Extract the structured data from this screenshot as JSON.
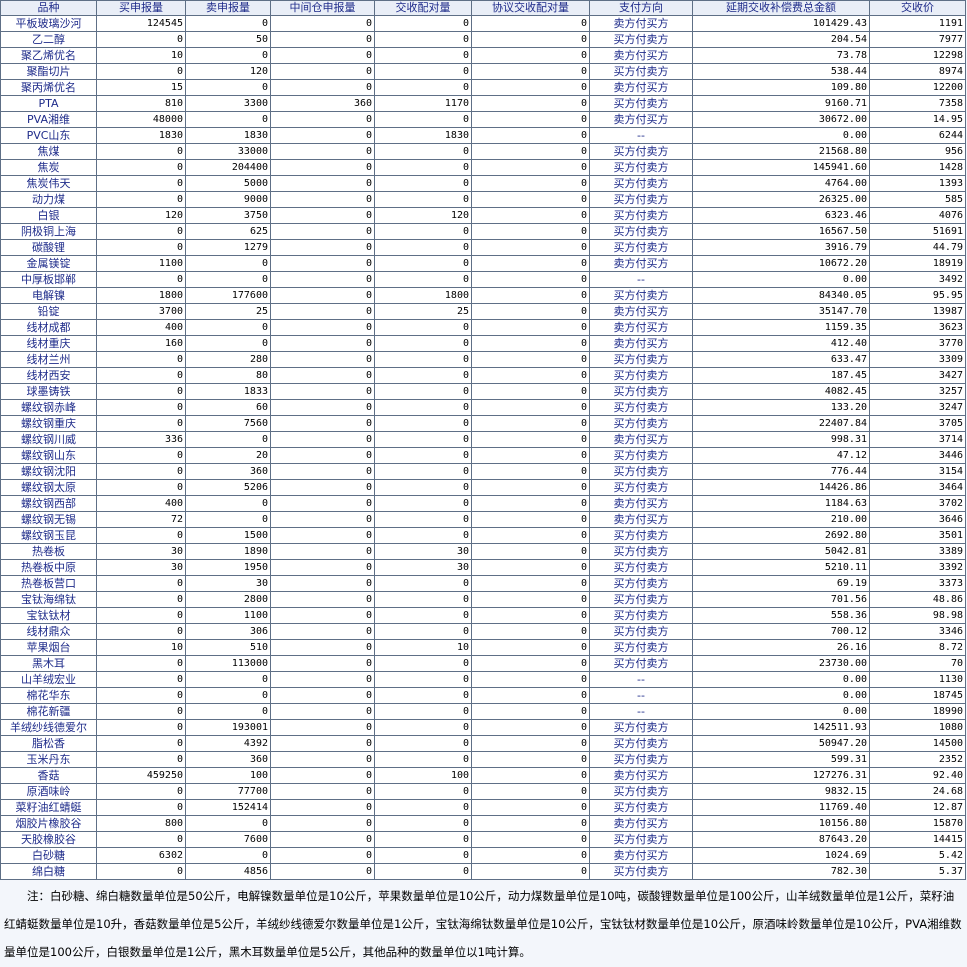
{
  "headers": [
    "品种",
    "买申报量",
    "卖申报量",
    "中间仓申报量",
    "交收配对量",
    "协议交收配对量",
    "支付方向",
    "延期交收补偿费总金额",
    "交收价"
  ],
  "rows": [
    [
      "平板玻璃沙河",
      "124545",
      "0",
      "0",
      "0",
      "0",
      "卖方付买方",
      "101429.43",
      "1191"
    ],
    [
      "乙二醇",
      "0",
      "50",
      "0",
      "0",
      "0",
      "买方付卖方",
      "204.54",
      "7977"
    ],
    [
      "聚乙烯优名",
      "10",
      "0",
      "0",
      "0",
      "0",
      "卖方付买方",
      "73.78",
      "12298"
    ],
    [
      "聚酯切片",
      "0",
      "120",
      "0",
      "0",
      "0",
      "买方付卖方",
      "538.44",
      "8974"
    ],
    [
      "聚丙烯优名",
      "15",
      "0",
      "0",
      "0",
      "0",
      "卖方付买方",
      "109.80",
      "12200"
    ],
    [
      "PTA",
      "810",
      "3300",
      "360",
      "1170",
      "0",
      "买方付卖方",
      "9160.71",
      "7358"
    ],
    [
      "PVA湘维",
      "48000",
      "0",
      "0",
      "0",
      "0",
      "卖方付买方",
      "30672.00",
      "14.95"
    ],
    [
      "PVC山东",
      "1830",
      "1830",
      "0",
      "1830",
      "0",
      "--",
      "0.00",
      "6244"
    ],
    [
      "焦煤",
      "0",
      "33000",
      "0",
      "0",
      "0",
      "买方付卖方",
      "21568.80",
      "956"
    ],
    [
      "焦炭",
      "0",
      "204400",
      "0",
      "0",
      "0",
      "买方付卖方",
      "145941.60",
      "1428"
    ],
    [
      "焦炭伟天",
      "0",
      "5000",
      "0",
      "0",
      "0",
      "买方付卖方",
      "4764.00",
      "1393"
    ],
    [
      "动力煤",
      "0",
      "9000",
      "0",
      "0",
      "0",
      "买方付卖方",
      "26325.00",
      "585"
    ],
    [
      "白银",
      "120",
      "3750",
      "0",
      "120",
      "0",
      "买方付卖方",
      "6323.46",
      "4076"
    ],
    [
      "阴极铜上海",
      "0",
      "625",
      "0",
      "0",
      "0",
      "买方付卖方",
      "16567.50",
      "51691"
    ],
    [
      "碳酸锂",
      "0",
      "1279",
      "0",
      "0",
      "0",
      "买方付卖方",
      "3916.79",
      "44.79"
    ],
    [
      "金属镁锭",
      "1100",
      "0",
      "0",
      "0",
      "0",
      "卖方付买方",
      "10672.20",
      "18919"
    ],
    [
      "中厚板邯郸",
      "0",
      "0",
      "0",
      "0",
      "0",
      "--",
      "0.00",
      "3492"
    ],
    [
      "电解镍",
      "1800",
      "177600",
      "0",
      "1800",
      "0",
      "买方付卖方",
      "84340.05",
      "95.95"
    ],
    [
      "铅锭",
      "3700",
      "25",
      "0",
      "25",
      "0",
      "卖方付买方",
      "35147.70",
      "13987"
    ],
    [
      "线材成都",
      "400",
      "0",
      "0",
      "0",
      "0",
      "卖方付买方",
      "1159.35",
      "3623"
    ],
    [
      "线材重庆",
      "160",
      "0",
      "0",
      "0",
      "0",
      "卖方付买方",
      "412.40",
      "3770"
    ],
    [
      "线材兰州",
      "0",
      "280",
      "0",
      "0",
      "0",
      "买方付卖方",
      "633.47",
      "3309"
    ],
    [
      "线材西安",
      "0",
      "80",
      "0",
      "0",
      "0",
      "买方付卖方",
      "187.45",
      "3427"
    ],
    [
      "球墨铸铁",
      "0",
      "1833",
      "0",
      "0",
      "0",
      "买方付卖方",
      "4082.45",
      "3257"
    ],
    [
      "螺纹钢赤峰",
      "0",
      "60",
      "0",
      "0",
      "0",
      "买方付卖方",
      "133.20",
      "3247"
    ],
    [
      "螺纹钢重庆",
      "0",
      "7560",
      "0",
      "0",
      "0",
      "买方付卖方",
      "22407.84",
      "3705"
    ],
    [
      "螺纹钢川威",
      "336",
      "0",
      "0",
      "0",
      "0",
      "卖方付买方",
      "998.31",
      "3714"
    ],
    [
      "螺纹钢山东",
      "0",
      "20",
      "0",
      "0",
      "0",
      "买方付卖方",
      "47.12",
      "3446"
    ],
    [
      "螺纹钢沈阳",
      "0",
      "360",
      "0",
      "0",
      "0",
      "买方付卖方",
      "776.44",
      "3154"
    ],
    [
      "螺纹钢太原",
      "0",
      "5206",
      "0",
      "0",
      "0",
      "买方付卖方",
      "14426.86",
      "3464"
    ],
    [
      "螺纹钢西部",
      "400",
      "0",
      "0",
      "0",
      "0",
      "卖方付买方",
      "1184.63",
      "3702"
    ],
    [
      "螺纹钢无锡",
      "72",
      "0",
      "0",
      "0",
      "0",
      "卖方付买方",
      "210.00",
      "3646"
    ],
    [
      "螺纹钢玉昆",
      "0",
      "1500",
      "0",
      "0",
      "0",
      "买方付卖方",
      "2692.80",
      "3501"
    ],
    [
      "热卷板",
      "30",
      "1890",
      "0",
      "30",
      "0",
      "买方付卖方",
      "5042.81",
      "3389"
    ],
    [
      "热卷板中原",
      "30",
      "1950",
      "0",
      "30",
      "0",
      "买方付卖方",
      "5210.11",
      "3392"
    ],
    [
      "热卷板营口",
      "0",
      "30",
      "0",
      "0",
      "0",
      "买方付卖方",
      "69.19",
      "3373"
    ],
    [
      "宝钛海绵钛",
      "0",
      "2800",
      "0",
      "0",
      "0",
      "买方付卖方",
      "701.56",
      "48.86"
    ],
    [
      "宝钛钛材",
      "0",
      "1100",
      "0",
      "0",
      "0",
      "买方付卖方",
      "558.36",
      "98.98"
    ],
    [
      "线材鼎众",
      "0",
      "306",
      "0",
      "0",
      "0",
      "买方付卖方",
      "700.12",
      "3346"
    ],
    [
      "苹果烟台",
      "10",
      "510",
      "0",
      "10",
      "0",
      "买方付卖方",
      "26.16",
      "8.72"
    ],
    [
      "黑木耳",
      "0",
      "113000",
      "0",
      "0",
      "0",
      "买方付卖方",
      "23730.00",
      "70"
    ],
    [
      "山羊绒宏业",
      "0",
      "0",
      "0",
      "0",
      "0",
      "--",
      "0.00",
      "1130"
    ],
    [
      "棉花华东",
      "0",
      "0",
      "0",
      "0",
      "0",
      "--",
      "0.00",
      "18745"
    ],
    [
      "棉花新疆",
      "0",
      "0",
      "0",
      "0",
      "0",
      "--",
      "0.00",
      "18990"
    ],
    [
      "羊绒纱线德爱尔",
      "0",
      "193001",
      "0",
      "0",
      "0",
      "买方付卖方",
      "142511.93",
      "1080"
    ],
    [
      "脂松香",
      "0",
      "4392",
      "0",
      "0",
      "0",
      "买方付卖方",
      "50947.20",
      "14500"
    ],
    [
      "玉米丹东",
      "0",
      "360",
      "0",
      "0",
      "0",
      "买方付卖方",
      "599.31",
      "2352"
    ],
    [
      "香菇",
      "459250",
      "100",
      "0",
      "100",
      "0",
      "卖方付买方",
      "127276.31",
      "92.40"
    ],
    [
      "原酒味岭",
      "0",
      "77700",
      "0",
      "0",
      "0",
      "买方付卖方",
      "9832.15",
      "24.68"
    ],
    [
      "菜籽油红蜻蜓",
      "0",
      "152414",
      "0",
      "0",
      "0",
      "买方付卖方",
      "11769.40",
      "12.87"
    ],
    [
      "烟胶片橡胶谷",
      "800",
      "0",
      "0",
      "0",
      "0",
      "卖方付买方",
      "10156.80",
      "15870"
    ],
    [
      "天胶橡胶谷",
      "0",
      "7600",
      "0",
      "0",
      "0",
      "买方付卖方",
      "87643.20",
      "14415"
    ],
    [
      "白砂糖",
      "6302",
      "0",
      "0",
      "0",
      "0",
      "卖方付买方",
      "1024.69",
      "5.42"
    ],
    [
      "绵白糖",
      "0",
      "4856",
      "0",
      "0",
      "0",
      "买方付卖方",
      "782.30",
      "5.37"
    ]
  ],
  "note": "注：白砂糖、绵白糖数量单位是50公斤，电解镍数量单位是10公斤，苹果数量单位是10公斤，动力煤数量单位是10吨，碳酸锂数量单位是100公斤，山羊绒数量单位是1公斤，菜籽油红蜻蜓数量单位是10升，香菇数量单位是5公斤，羊绒纱线德爱尔数量单位是1公斤，宝钛海绵钛数量单位是10公斤，宝钛钛材数量单位是10公斤，原酒味岭数量单位是10公斤，PVA湘维数量单位是100公斤，白银数量单位是1公斤，黑木耳数量单位是5公斤，其他品种的数量单位以1吨计算。"
}
